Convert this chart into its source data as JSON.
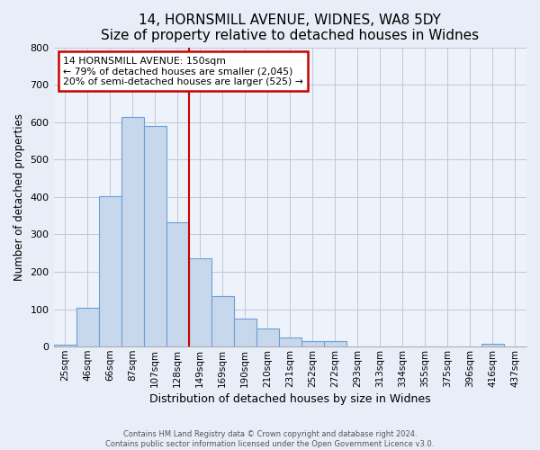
{
  "title": "14, HORNSMILL AVENUE, WIDNES, WA8 5DY",
  "subtitle": "Size of property relative to detached houses in Widnes",
  "xlabel": "Distribution of detached houses by size in Widnes",
  "ylabel": "Number of detached properties",
  "bin_labels": [
    "25sqm",
    "46sqm",
    "66sqm",
    "87sqm",
    "107sqm",
    "128sqm",
    "149sqm",
    "169sqm",
    "190sqm",
    "210sqm",
    "231sqm",
    "252sqm",
    "272sqm",
    "293sqm",
    "313sqm",
    "334sqm",
    "355sqm",
    "375sqm",
    "396sqm",
    "416sqm",
    "437sqm"
  ],
  "bar_heights": [
    5,
    105,
    403,
    615,
    590,
    333,
    237,
    135,
    76,
    49,
    25,
    15,
    15,
    0,
    0,
    0,
    0,
    0,
    0,
    8,
    0
  ],
  "bar_color": "#c8d8ec",
  "bar_edge_color": "#6a9fd8",
  "vline_x_index": 6,
  "vline_color": "#cc0000",
  "annotation_title": "14 HORNSMILL AVENUE: 150sqm",
  "annotation_line1": "← 79% of detached houses are smaller (2,045)",
  "annotation_line2": "20% of semi-detached houses are larger (525) →",
  "annotation_box_color": "#ffffff",
  "annotation_box_edge": "#cc0000",
  "ylim": [
    0,
    800
  ],
  "yticks": [
    0,
    100,
    200,
    300,
    400,
    500,
    600,
    700,
    800
  ],
  "footer_line1": "Contains HM Land Registry data © Crown copyright and database right 2024.",
  "footer_line2": "Contains public sector information licensed under the Open Government Licence v3.0.",
  "bg_color": "#e8eef8",
  "plot_bg_color": "#eef2fa"
}
